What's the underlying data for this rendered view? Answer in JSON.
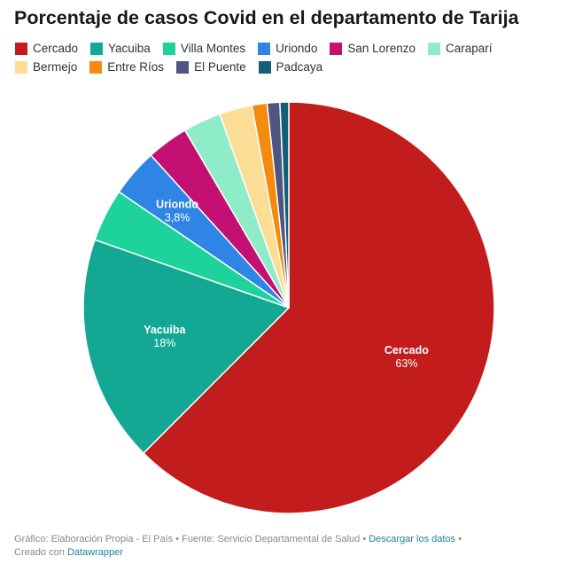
{
  "title": "Porcentaje de casos Covid en el departamento de Tarija",
  "colors": {
    "Cercado": "#c21c1c",
    "Yacuiba": "#12a894",
    "Villa Montes": "#1dd39b",
    "Uriondo": "#2f85e6",
    "San Lorenzo": "#c40f73",
    "Caraparí": "#8fecc8",
    "Bermejo": "#fcdd96",
    "Entre Ríos": "#f48b0c",
    "El Puente": "#4d5580",
    "Padcaya": "#145f78"
  },
  "chart_data": {
    "type": "pie",
    "title": "Porcentaje de casos Covid en el departamento de Tarija",
    "legend_position": "top",
    "slices": [
      {
        "label": "Cercado",
        "value": 63,
        "data_label": "63%"
      },
      {
        "label": "Yacuiba",
        "value": 18,
        "data_label": "18%"
      },
      {
        "label": "Villa Montes",
        "value": 4.2
      },
      {
        "label": "Uriondo",
        "value": 3.8,
        "data_label": "3,8%"
      },
      {
        "label": "San Lorenzo",
        "value": 3.3
      },
      {
        "label": "Caraparí",
        "value": 3.0
      },
      {
        "label": "Bermejo",
        "value": 2.6
      },
      {
        "label": "Entre Ríos",
        "value": 1.2
      },
      {
        "label": "El Puente",
        "value": 1.0
      },
      {
        "label": "Padcaya",
        "value": 0.7
      }
    ]
  },
  "footer": {
    "source_prefix": "Gráfico: Elaboración Propia - El País • Fuente: Servicio Departamental de Salud • ",
    "download_link": "Descargar los datos",
    "separator": " •",
    "created_prefix": "Creado con ",
    "created_link": "Datawrapper"
  }
}
